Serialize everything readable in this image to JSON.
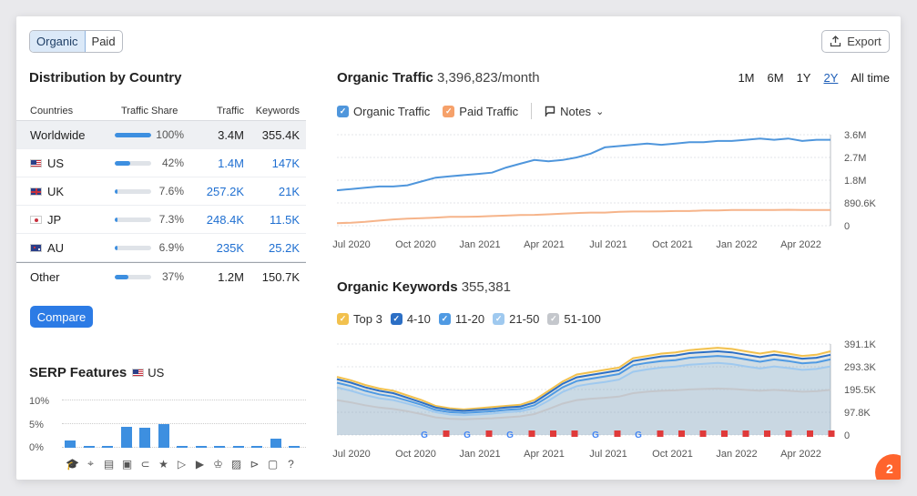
{
  "toggle": {
    "organic": "Organic",
    "paid": "Paid"
  },
  "export_label": "Export",
  "distribution": {
    "title": "Distribution by Country",
    "headers": {
      "countries": "Countries",
      "share": "Traffic Share",
      "traffic": "Traffic",
      "keywords": "Keywords"
    },
    "rows": [
      {
        "country": "Worldwide",
        "flag": "",
        "share": "100%",
        "share_fraction": 1.0,
        "traffic": "3.4M",
        "keywords": "355.4K"
      },
      {
        "country": "US",
        "flag": "us",
        "share": "42%",
        "share_fraction": 0.42,
        "traffic": "1.4M",
        "keywords": "147K"
      },
      {
        "country": "UK",
        "flag": "uk",
        "share": "7.6%",
        "share_fraction": 0.076,
        "traffic": "257.2K",
        "keywords": "21K"
      },
      {
        "country": "JP",
        "flag": "jp",
        "share": "7.3%",
        "share_fraction": 0.073,
        "traffic": "248.4K",
        "keywords": "11.5K"
      },
      {
        "country": "AU",
        "flag": "au",
        "share": "6.9%",
        "share_fraction": 0.069,
        "traffic": "235K",
        "keywords": "25.2K"
      },
      {
        "country": "Other",
        "flag": "",
        "share": "37%",
        "share_fraction": 0.37,
        "traffic": "1.2M",
        "keywords": "150.7K"
      }
    ],
    "compare_label": "Compare"
  },
  "serp": {
    "title": "SERP Features",
    "region": "US",
    "ticks": [
      "10%",
      "5%",
      "0%"
    ]
  },
  "traffic": {
    "title": "Organic Traffic",
    "value": "3,396,823/month",
    "periods": [
      "1M",
      "6M",
      "1Y",
      "2Y",
      "All time"
    ],
    "selected_period": "2Y",
    "legend": {
      "organic": "Organic Traffic",
      "paid": "Paid Traffic",
      "notes": "Notes"
    }
  },
  "keywords": {
    "title": "Organic Keywords",
    "value": "355,381",
    "legend": [
      "Top 3",
      "4-10",
      "11-20",
      "21-50",
      "51-100"
    ]
  },
  "colors": {
    "accent": "#2c7be5",
    "organic": "#4f96dc",
    "paid": "#f6b48a",
    "top3": "#f2c14e",
    "k4_10": "#2c6fc5",
    "k11_20": "#4f9ae3",
    "k21_50": "#9fc9ef",
    "k51_100": "#c4c7cc",
    "corner": "#ff642d"
  },
  "chart_data": [
    {
      "type": "bar",
      "title": "SERP Features",
      "ylim": [
        0,
        10
      ],
      "y_ticks": [
        "10%",
        "5%",
        "0%"
      ],
      "values": [
        1.5,
        0.4,
        0.4,
        4.4,
        4.3,
        5.0,
        0.4,
        0.4,
        0.4,
        0.4,
        0.4,
        2.0,
        0.4
      ],
      "icons": [
        "graduation-cap-icon",
        "location-pin-icon",
        "document-icon",
        "image-icon",
        "link-icon",
        "star-icon",
        "play-icon",
        "video-icon",
        "crown-icon",
        "picture-icon",
        "play-circle-icon",
        "comment-icon",
        "question-icon"
      ]
    },
    {
      "type": "line",
      "title": "Organic Traffic",
      "x_ticks": [
        "Jul 2020",
        "Oct 2020",
        "Jan 2021",
        "Apr 2021",
        "Jul 2021",
        "Oct 2021",
        "Jan 2022",
        "Apr 2022"
      ],
      "y_ticks": [
        "3.6M",
        "2.7M",
        "1.8M",
        "890.6K",
        "0"
      ],
      "ylim": [
        0,
        3600000
      ],
      "series": [
        {
          "name": "Organic Traffic",
          "values": [
            1.4,
            1.45,
            1.5,
            1.55,
            1.55,
            1.6,
            1.75,
            1.9,
            1.95,
            2.0,
            2.05,
            2.1,
            2.3,
            2.45,
            2.6,
            2.55,
            2.6,
            2.7,
            2.85,
            3.1,
            3.15,
            3.2,
            3.25,
            3.2,
            3.25,
            3.3,
            3.3,
            3.35,
            3.35,
            3.4,
            3.45,
            3.4,
            3.45,
            3.35,
            3.4,
            3.4
          ]
        },
        {
          "name": "Paid Traffic",
          "values": [
            0.1,
            0.12,
            0.15,
            0.2,
            0.25,
            0.28,
            0.3,
            0.32,
            0.35,
            0.35,
            0.36,
            0.38,
            0.4,
            0.42,
            0.43,
            0.45,
            0.48,
            0.5,
            0.52,
            0.52,
            0.55,
            0.56,
            0.56,
            0.57,
            0.58,
            0.58,
            0.6,
            0.6,
            0.62,
            0.62,
            0.62,
            0.62,
            0.63,
            0.62,
            0.62,
            0.62
          ]
        }
      ]
    },
    {
      "type": "area",
      "title": "Organic Keywords",
      "x_ticks": [
        "Jul 2020",
        "Oct 2020",
        "Jan 2021",
        "Apr 2021",
        "Jul 2021",
        "Oct 2021",
        "Jan 2022",
        "Apr 2022"
      ],
      "y_ticks": [
        "391.1K",
        "293.3K",
        "195.5K",
        "97.8K",
        "0"
      ],
      "ylim": [
        0,
        391100
      ],
      "series": [
        {
          "name": "Top 3",
          "values": [
            250,
            235,
            215,
            200,
            190,
            170,
            150,
            125,
            115,
            110,
            115,
            120,
            125,
            130,
            150,
            190,
            230,
            260,
            270,
            280,
            290,
            330,
            340,
            350,
            355,
            365,
            370,
            375,
            370,
            360,
            350,
            360,
            350,
            340,
            345,
            360
          ]
        },
        {
          "name": "4-10",
          "values": [
            240,
            225,
            205,
            190,
            180,
            160,
            140,
            118,
            108,
            104,
            108,
            112,
            118,
            122,
            140,
            180,
            220,
            248,
            258,
            268,
            278,
            318,
            328,
            338,
            342,
            352,
            356,
            360,
            355,
            345,
            335,
            345,
            338,
            328,
            332,
            345
          ]
        },
        {
          "name": "11-20",
          "values": [
            225,
            210,
            190,
            175,
            165,
            148,
            130,
            108,
            98,
            95,
            98,
            102,
            108,
            112,
            128,
            165,
            205,
            232,
            242,
            252,
            262,
            300,
            310,
            318,
            322,
            332,
            336,
            340,
            335,
            325,
            315,
            325,
            318,
            308,
            312,
            325
          ]
        },
        {
          "name": "21-50",
          "values": [
            205,
            190,
            172,
            158,
            150,
            135,
            118,
            98,
            88,
            85,
            88,
            92,
            98,
            102,
            115,
            148,
            185,
            210,
            220,
            228,
            238,
            272,
            282,
            290,
            294,
            302,
            306,
            310,
            305,
            295,
            286,
            295,
            288,
            280,
            284,
            295
          ]
        },
        {
          "name": "51-100",
          "values": [
            150,
            140,
            128,
            118,
            112,
            102,
            90,
            76,
            70,
            68,
            70,
            72,
            76,
            80,
            90,
            112,
            135,
            150,
            156,
            160,
            165,
            180,
            186,
            190,
            192,
            196,
            198,
            200,
            198,
            194,
            190,
            194,
            190,
            186,
            188,
            194
          ]
        }
      ]
    }
  ]
}
